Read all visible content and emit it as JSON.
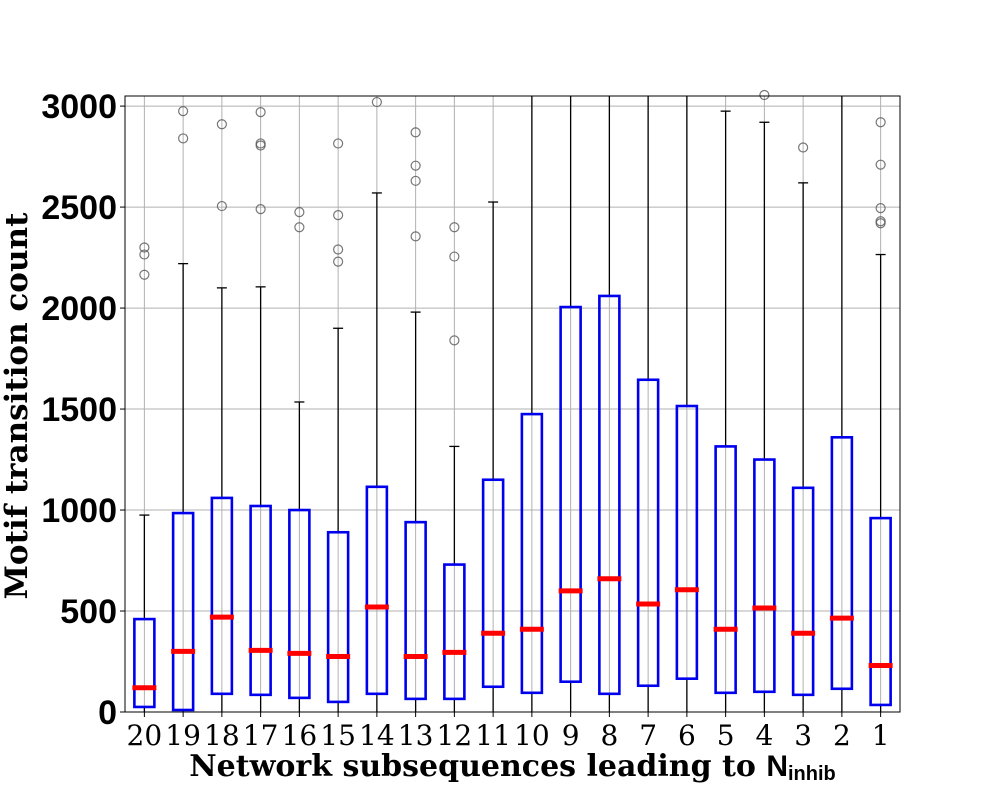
{
  "chart_data": {
    "type": "box",
    "xlabel": "Network subsequences leading to ",
    "xlabel_symbol": "N",
    "xlabel_subscript": "inhib",
    "ylabel": "Motif transition count",
    "ylim": [
      0,
      3050
    ],
    "yticks": [
      0,
      500,
      1000,
      1500,
      2000,
      2500,
      3000
    ],
    "grid": true,
    "colors": {
      "box": "#0000ee",
      "median": "#ff0000",
      "whisker": "#000000",
      "flier": "#555555",
      "grid": "#b0b0b0"
    },
    "categories": [
      "20",
      "19",
      "18",
      "17",
      "16",
      "15",
      "14",
      "13",
      "12",
      "11",
      "10",
      "9",
      "8",
      "7",
      "6",
      "5",
      "4",
      "3",
      "2",
      "1"
    ],
    "boxes": [
      {
        "q1": 25,
        "median": 120,
        "q3": 460,
        "whisker_low": 0,
        "whisker_high": 975,
        "fliers": [
          2165,
          2265,
          2300
        ]
      },
      {
        "q1": 10,
        "median": 300,
        "q3": 985,
        "whisker_low": 0,
        "whisker_high": 2220,
        "fliers": [
          2840,
          2975
        ]
      },
      {
        "q1": 90,
        "median": 470,
        "q3": 1060,
        "whisker_low": 0,
        "whisker_high": 2100,
        "fliers": [
          2505,
          2910
        ]
      },
      {
        "q1": 85,
        "median": 305,
        "q3": 1020,
        "whisker_low": 0,
        "whisker_high": 2105,
        "fliers": [
          2490,
          2805,
          2815,
          2970
        ]
      },
      {
        "q1": 70,
        "median": 290,
        "q3": 1000,
        "whisker_low": 0,
        "whisker_high": 1535,
        "fliers": [
          2400,
          2475
        ]
      },
      {
        "q1": 50,
        "median": 275,
        "q3": 890,
        "whisker_low": 0,
        "whisker_high": 1900,
        "fliers": [
          2230,
          2290,
          2460,
          2815
        ]
      },
      {
        "q1": 90,
        "median": 520,
        "q3": 1115,
        "whisker_low": 0,
        "whisker_high": 2570,
        "fliers": [
          3020
        ]
      },
      {
        "q1": 65,
        "median": 275,
        "q3": 940,
        "whisker_low": 0,
        "whisker_high": 1980,
        "fliers": [
          2355,
          2630,
          2705,
          2870
        ]
      },
      {
        "q1": 65,
        "median": 295,
        "q3": 730,
        "whisker_low": 0,
        "whisker_high": 1315,
        "fliers": [
          1840,
          2255,
          2400
        ]
      },
      {
        "q1": 125,
        "median": 390,
        "q3": 1150,
        "whisker_low": 0,
        "whisker_high": 2525,
        "fliers": []
      },
      {
        "q1": 95,
        "median": 410,
        "q3": 1475,
        "whisker_low": 0,
        "whisker_high": 3050,
        "fliers": []
      },
      {
        "q1": 150,
        "median": 600,
        "q3": 2005,
        "whisker_low": 0,
        "whisker_high": 3050,
        "fliers": []
      },
      {
        "q1": 90,
        "median": 660,
        "q3": 2060,
        "whisker_low": 0,
        "whisker_high": 3050,
        "fliers": []
      },
      {
        "q1": 130,
        "median": 535,
        "q3": 1645,
        "whisker_low": 0,
        "whisker_high": 3050,
        "fliers": []
      },
      {
        "q1": 165,
        "median": 605,
        "q3": 1515,
        "whisker_low": 0,
        "whisker_high": 3050,
        "fliers": []
      },
      {
        "q1": 95,
        "median": 410,
        "q3": 1315,
        "whisker_low": 0,
        "whisker_high": 2975,
        "fliers": []
      },
      {
        "q1": 100,
        "median": 515,
        "q3": 1250,
        "whisker_low": 0,
        "whisker_high": 2920,
        "fliers": [
          3055
        ]
      },
      {
        "q1": 85,
        "median": 390,
        "q3": 1110,
        "whisker_low": 0,
        "whisker_high": 2620,
        "fliers": [
          2795
        ]
      },
      {
        "q1": 115,
        "median": 465,
        "q3": 1360,
        "whisker_low": 0,
        "whisker_high": 3050,
        "fliers": []
      },
      {
        "q1": 35,
        "median": 230,
        "q3": 960,
        "whisker_low": 0,
        "whisker_high": 2265,
        "fliers": [
          2420,
          2430,
          2495,
          2710,
          2920
        ]
      }
    ]
  }
}
